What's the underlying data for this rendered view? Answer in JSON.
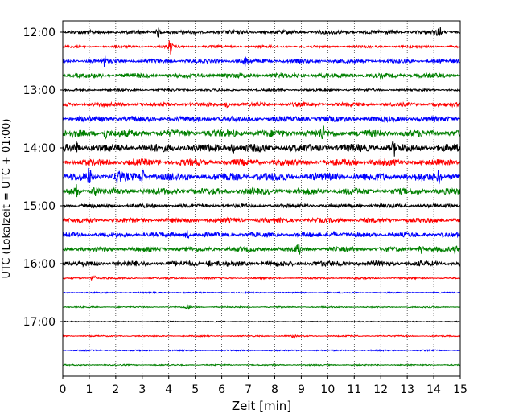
{
  "chart_data": {
    "type": "line",
    "xlabel": "Zeit  [min]",
    "ylabel": "UTC (Lokalzeit = UTC + 01:00)",
    "xlim": [
      0,
      15
    ],
    "x_ticks": [
      0,
      1,
      2,
      3,
      4,
      5,
      6,
      7,
      8,
      9,
      10,
      11,
      12,
      13,
      14,
      15
    ],
    "grid": "vertical dotted",
    "row_interval_minutes": 15,
    "y_ticks": [
      "12:00",
      "13:00",
      "14:00",
      "15:00",
      "16:00",
      "17:00"
    ],
    "color_cycle": [
      "#000000",
      "#ff0000",
      "#0000ff",
      "#008000"
    ],
    "traces": [
      {
        "start": "12:00",
        "amplitude": 2.5,
        "events": [
          [
            3.6,
            5
          ],
          [
            14.2,
            7
          ]
        ]
      },
      {
        "start": "12:15",
        "amplitude": 1.5,
        "events": [
          [
            4.05,
            8
          ]
        ]
      },
      {
        "start": "12:30",
        "amplitude": 2.5,
        "events": [
          [
            1.55,
            8
          ],
          [
            6.9,
            5
          ]
        ]
      },
      {
        "start": "12:45",
        "amplitude": 3.0,
        "events": []
      },
      {
        "start": "13:00",
        "amplitude": 1.5,
        "events": []
      },
      {
        "start": "13:15",
        "amplitude": 2.5,
        "events": [
          [
            6.2,
            3
          ]
        ]
      },
      {
        "start": "13:30",
        "amplitude": 3.5,
        "events": []
      },
      {
        "start": "13:45",
        "amplitude": 4.5,
        "events": [
          [
            1.6,
            6
          ],
          [
            9.8,
            7
          ]
        ]
      },
      {
        "start": "14:00",
        "amplitude": 5.0,
        "events": [
          [
            0.5,
            6
          ],
          [
            6.4,
            6
          ],
          [
            12.5,
            7
          ]
        ]
      },
      {
        "start": "14:15",
        "amplitude": 4.0,
        "events": []
      },
      {
        "start": "14:30",
        "amplitude": 5.0,
        "events": [
          [
            1.0,
            9
          ],
          [
            2.1,
            12
          ],
          [
            3.0,
            8
          ],
          [
            14.2,
            7
          ]
        ]
      },
      {
        "start": "14:45",
        "amplitude": 4.0,
        "events": [
          [
            0.55,
            8
          ],
          [
            1.2,
            6
          ]
        ]
      },
      {
        "start": "15:00",
        "amplitude": 2.5,
        "events": []
      },
      {
        "start": "15:15",
        "amplitude": 3.0,
        "events": []
      },
      {
        "start": "15:30",
        "amplitude": 3.0,
        "events": [
          [
            4.7,
            5
          ],
          [
            10.2,
            5
          ]
        ]
      },
      {
        "start": "15:45",
        "amplitude": 3.0,
        "events": [
          [
            8.9,
            7
          ],
          [
            13.5,
            5
          ],
          [
            14.8,
            5
          ]
        ]
      },
      {
        "start": "16:00",
        "amplitude": 3.5,
        "events": [
          [
            5.5,
            3
          ]
        ]
      },
      {
        "start": "16:15",
        "amplitude": 1.0,
        "events": [
          [
            1.15,
            5
          ]
        ]
      },
      {
        "start": "16:30",
        "amplitude": 0.8,
        "events": []
      },
      {
        "start": "16:45",
        "amplitude": 0.8,
        "events": [
          [
            4.7,
            3
          ]
        ]
      },
      {
        "start": "17:00",
        "amplitude": 0.6,
        "events": []
      },
      {
        "start": "17:15",
        "amplitude": 0.8,
        "events": [
          [
            8.7,
            2
          ]
        ]
      },
      {
        "start": "17:30",
        "amplitude": 0.8,
        "events": []
      },
      {
        "start": "17:45",
        "amplitude": 0.8,
        "events": []
      }
    ]
  }
}
